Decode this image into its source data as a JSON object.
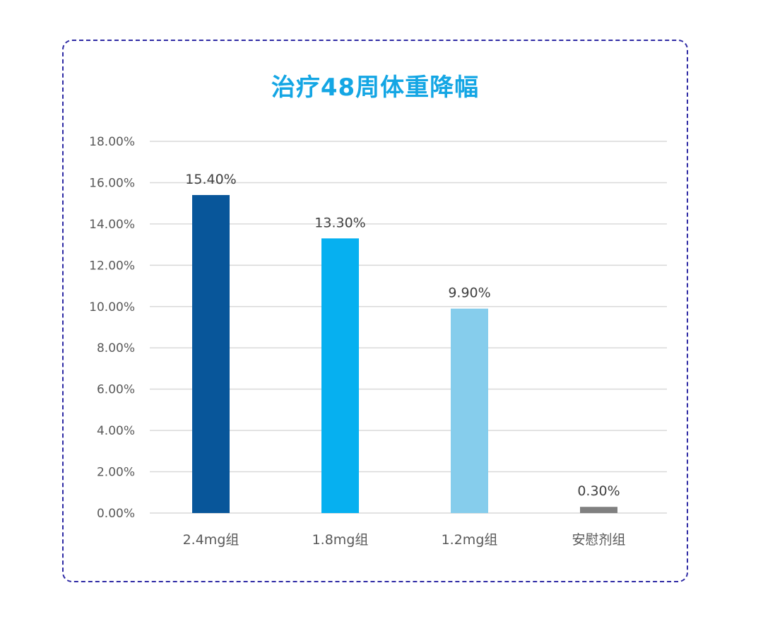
{
  "chart_data": {
    "type": "bar",
    "title": "治疗48周体重降幅",
    "categories": [
      "2.4mg组",
      "1.8mg组",
      "1.2mg组",
      "安慰剂组"
    ],
    "values": [
      15.4,
      13.3,
      9.9,
      0.3
    ],
    "data_labels": [
      "15.40%",
      "13.30%",
      "9.90%",
      "0.30%"
    ],
    "bar_colors": [
      "#08569a",
      "#06b0f0",
      "#86cdec",
      "#808080"
    ],
    "ylim": [
      0,
      18
    ],
    "yticks": [
      0,
      2,
      4,
      6,
      8,
      10,
      12,
      14,
      16,
      18
    ],
    "ytick_labels": [
      "0.00%",
      "2.00%",
      "4.00%",
      "6.00%",
      "8.00%",
      "10.00%",
      "12.00%",
      "14.00%",
      "16.00%",
      "18.00%"
    ],
    "xlabel": "",
    "ylabel": "",
    "grid": true,
    "legend": "none"
  },
  "colors": {
    "title": "#14a6e4",
    "frame_border": "#2e2aa4",
    "gridline": "#d9d9d9",
    "text": "#595959"
  }
}
